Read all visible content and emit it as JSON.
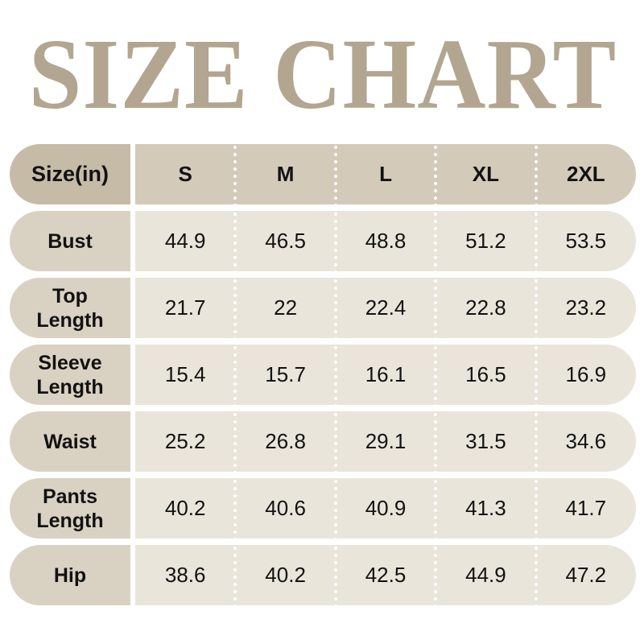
{
  "chart_data": {
    "type": "table",
    "title": "SIZE CHART",
    "unit_label": "Size(in)",
    "columns": [
      "S",
      "M",
      "L",
      "XL",
      "2XL"
    ],
    "rows": [
      {
        "label": "Bust",
        "values": [
          "44.9",
          "46.5",
          "48.8",
          "51.2",
          "53.5"
        ]
      },
      {
        "label": "Top\nLength",
        "values": [
          "21.7",
          "22",
          "22.4",
          "22.8",
          "23.2"
        ]
      },
      {
        "label": "Sleeve\nLength",
        "values": [
          "15.4",
          "15.7",
          "16.1",
          "16.5",
          "16.9"
        ]
      },
      {
        "label": "Waist",
        "values": [
          "25.2",
          "26.8",
          "29.1",
          "31.5",
          "34.6"
        ]
      },
      {
        "label": "Pants\nLength",
        "values": [
          "40.2",
          "40.6",
          "40.9",
          "41.3",
          "41.7"
        ]
      },
      {
        "label": "Hip",
        "values": [
          "38.6",
          "40.2",
          "42.5",
          "44.9",
          "47.2"
        ]
      }
    ]
  },
  "colors": {
    "title_text": "#b2a690",
    "header_label_bg": "#c6bba7",
    "header_values_bg": "#d3cab9",
    "row_label_bg": "#d9d2c3",
    "row_values_bg": "#eae5da",
    "cell_text": "#121212",
    "separator_dots": "#ffffff",
    "page_bg": "#ffffff"
  }
}
